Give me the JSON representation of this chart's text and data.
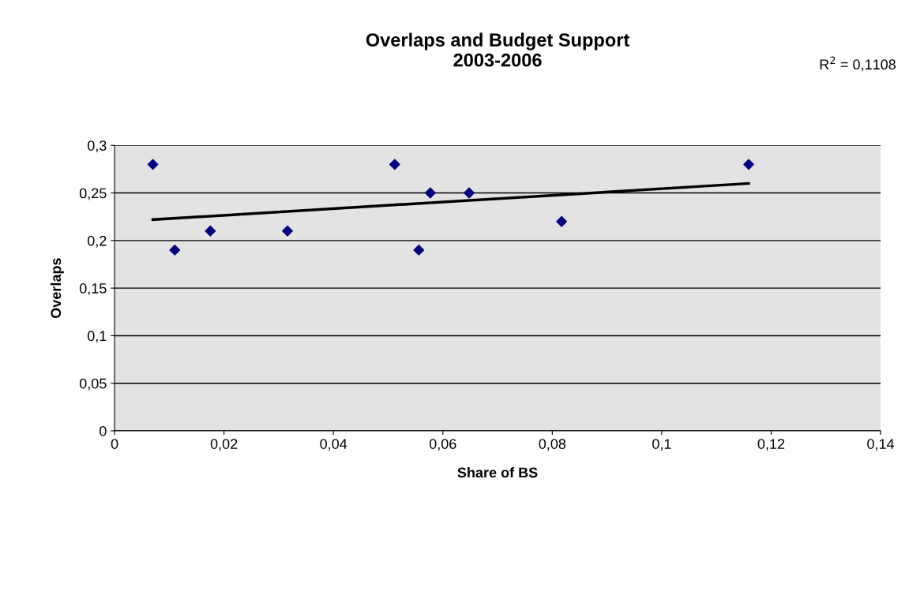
{
  "chart_data": {
    "type": "scatter",
    "title": "Overlaps and Budget Support\n2003-2006",
    "xlabel": "Share of BS",
    "ylabel": "Overlaps",
    "annotations": [
      "R$^{2}$ = 0,1108"
    ],
    "series": [
      {
        "color": "#000080",
        "marker": "diamond",
        "x": [
          0.007,
          0.011,
          0.0175,
          0.0316,
          0.0512,
          0.0556,
          0.0577,
          0.0648,
          0.0817,
          0.1159
        ],
        "values": [
          0.28,
          0.19,
          0.21,
          0.21,
          0.28,
          0.19,
          0.25,
          0.25,
          0.22,
          0.28
        ]
      },
      {
        "type": "line",
        "color": "#000000",
        "marker": "none",
        "x": [
          0.007,
          0.1159
        ],
        "values": [
          0.222,
          0.26
        ]
      }
    ],
    "xlim": [
      0,
      0.14
    ],
    "ylim": [
      0,
      0.3
    ],
    "xticks": [
      0,
      {
        "value": 0.02,
        "label": "0,02"
      },
      {
        "value": 0.04,
        "label": "0,04"
      },
      {
        "value": 0.06,
        "label": "0,06"
      },
      {
        "value": 0.08,
        "label": "0,08"
      },
      {
        "value": 0.1,
        "label": "0,1"
      },
      {
        "value": 0.12,
        "label": "0,12"
      },
      {
        "value": 0.14,
        "label": "0,14"
      }
    ],
    "yticks": [
      0,
      {
        "value": 0.05,
        "label": "0,05"
      },
      {
        "value": 0.1,
        "label": "0,1"
      },
      {
        "value": 0.15,
        "label": "0,15"
      },
      {
        "value": 0.2,
        "label": "0,2"
      },
      {
        "value": 0.25,
        "label": "0,25"
      },
      {
        "value": 0.3,
        "label": "0,3"
      }
    ],
    "grid": "y",
    "legend": false
  }
}
